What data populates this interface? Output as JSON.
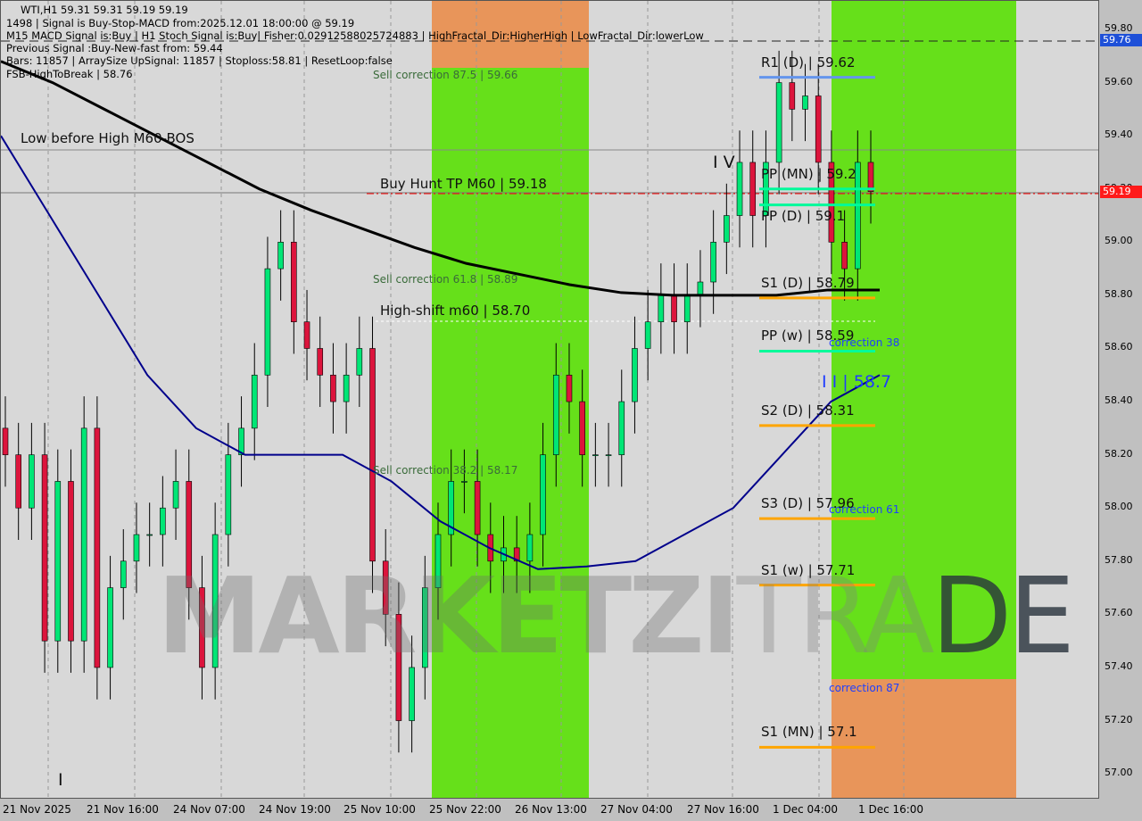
{
  "header": {
    "symbol_line": "WTI,H1  59.31 59.31 59.19 59.19",
    "line1": "1498 | Signal is Buy-Stop-MACD from:2025.12.01 18:00:00 @ 59.19",
    "line2": "M15 MACD Signal is:Buy | H1 Stoch Signal is:Buy| Fisher:0.02912588025724883 | HighFractal_Dir:HigherHigh | LowFractal_Dir:lowerLow",
    "line2_overlap": "FSB-HighToBreak | 58.76",
    "line3": "Previous Signal :Buy-New-fast from: 59.44",
    "line4": "Bars: 11857 | ArraySize UpSignal: 11857 | Stoploss:58.81 | ResetLoop:false"
  },
  "watermark": "MARKETZITRADE",
  "colors": {
    "bull": "#00e676",
    "bear": "#dc143c",
    "zone_green": "#66e01a",
    "zone_orange": "#e8955a",
    "ma_slow": "#000000",
    "ma_fast": "#00008b",
    "current_price": "#ff0000"
  },
  "chart_data": {
    "type": "candlestick",
    "ylim": [
      56.9,
      59.87
    ],
    "y_ticks": [
      "59.80",
      "59.60",
      "59.40",
      "59.20",
      "59.00",
      "58.80",
      "58.60",
      "58.40",
      "58.20",
      "58.00",
      "57.80",
      "57.60",
      "57.40",
      "57.20",
      "57.00"
    ],
    "x_ticks": [
      "21 Nov 2025",
      "21 Nov 16:00",
      "24 Nov 07:00",
      "24 Nov 19:00",
      "25 Nov 10:00",
      "25 Nov 22:00",
      "26 Nov 13:00",
      "27 Nov 04:00",
      "27 Nov 16:00",
      "1 Dec 04:00",
      "1 Dec 16:00"
    ],
    "closes": [
      58.2,
      58.0,
      58.2,
      57.5,
      58.1,
      57.5,
      58.3,
      57.4,
      57.7,
      57.8,
      57.9,
      57.9,
      58.0,
      58.1,
      57.7,
      57.4,
      57.9,
      58.2,
      58.3,
      58.5,
      58.9,
      59.0,
      58.7,
      58.6,
      58.5,
      58.4,
      58.5,
      58.6,
      57.8,
      57.6,
      57.2,
      57.4,
      57.7,
      57.9,
      58.1,
      58.1,
      57.9,
      57.8,
      57.85,
      57.8,
      57.9,
      58.2,
      58.5,
      58.4,
      58.2,
      58.2,
      58.2,
      58.4,
      58.6,
      58.7,
      58.8,
      58.7,
      58.8,
      58.85,
      59.0,
      59.1,
      59.3,
      59.1,
      59.3,
      59.6,
      59.5,
      59.55,
      59.3,
      59.0,
      58.9,
      59.3,
      59.19
    ],
    "ma_slow": [
      59.68,
      59.6,
      59.5,
      59.4,
      59.3,
      59.2,
      59.12,
      59.05,
      58.98,
      58.92,
      58.88,
      58.84,
      58.81,
      58.8,
      58.8,
      58.8,
      58.82,
      58.82
    ],
    "ma_fast": [
      59.4,
      59.1,
      58.8,
      58.5,
      58.3,
      58.2,
      58.2,
      58.2,
      58.1,
      57.95,
      57.85,
      57.77,
      57.78,
      57.8,
      57.9,
      58.0,
      58.2,
      58.4,
      58.5
    ],
    "current_price": "59.19",
    "high_price_box": "59.76"
  },
  "levels": [
    {
      "text": "R1 (D) | 59.62",
      "price": 59.62,
      "color": "#6495ed"
    },
    {
      "text": "PP (MN) | 59.2",
      "price": 59.2,
      "color": "#00fa9a"
    },
    {
      "text": "PP (D) | 59.1",
      "price": 59.14,
      "color": "#00fa9a"
    },
    {
      "text": "S1 (D) | 58.79",
      "price": 58.79,
      "color": "#ffa500"
    },
    {
      "text": "PP (w) | 58.59",
      "price": 58.59,
      "color": "#00fa9a"
    },
    {
      "text": "S2 (D) | 58.31",
      "price": 58.31,
      "color": "#ffa500"
    },
    {
      "text": "S3 (D) | 57.96",
      "price": 57.96,
      "color": "#ffa500"
    },
    {
      "text": "S1 (w) | 57.71",
      "price": 57.71,
      "color": "#ffa500"
    },
    {
      "text": "S1 (MN) | 57.1",
      "price": 57.1,
      "color": "#ffa500"
    }
  ],
  "annotations": {
    "low_before_high": "Low before High   M60-BOS",
    "buy_hunt": "Buy Hunt TP M60 | 59.18",
    "high_shift": "High-shift m60 | 58.70",
    "sell_875": "Sell correction 87.5 | 59.66",
    "sell_618": "Sell correction 61.8 | 58.89",
    "sell_382": "Sell correction 38.2 | 58.17",
    "corr38": "correction 38",
    "corr61": "correction 61",
    "corr87": "correction 87",
    "wave_iv": "I V",
    "wave_ii": "I I | 58.7",
    "wave_i": "I"
  }
}
